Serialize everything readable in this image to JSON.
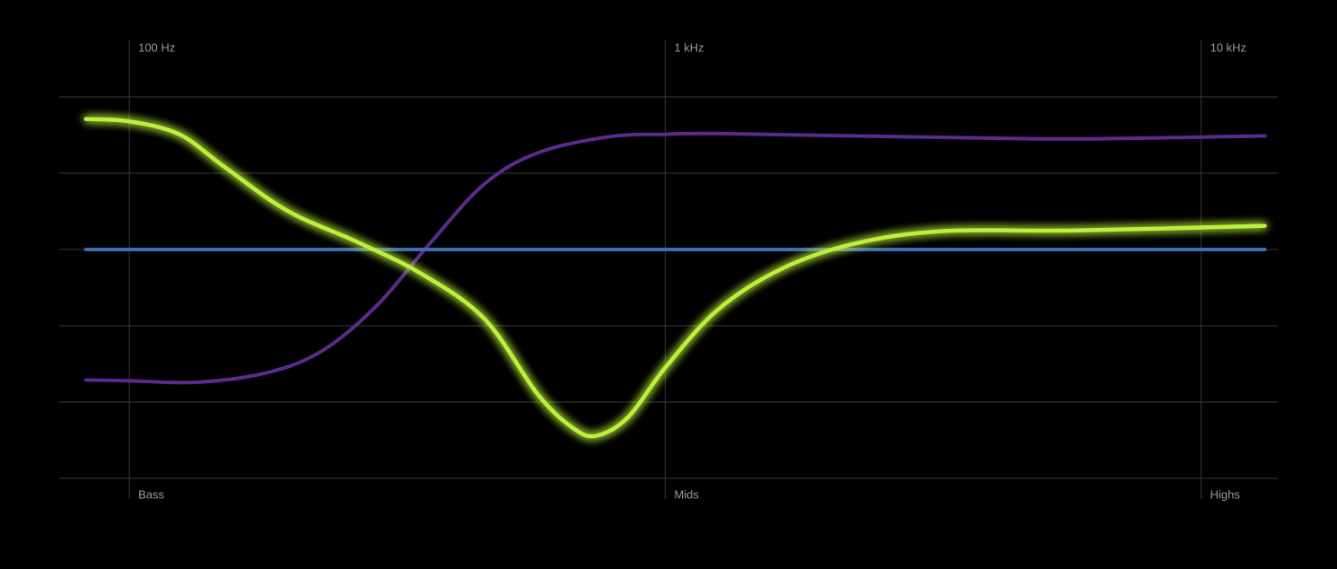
{
  "chart_data": {
    "type": "line",
    "xscale": "log",
    "xlim": [
      74,
      13900
    ],
    "ylim": [
      -3,
      2
    ],
    "xticks": [
      {
        "value": 100,
        "label": "100 Hz"
      },
      {
        "value": 1000,
        "label": "1 kHz"
      },
      {
        "value": 10000,
        "label": "10 kHz"
      }
    ],
    "xtick_bottom_labels": [
      "Bass",
      "Mids",
      "Highs"
    ],
    "ygrid": [
      -3,
      -2,
      -1,
      0,
      1,
      2
    ],
    "grid": true,
    "series": [
      {
        "color": "#5b2b8c",
        "glow": false,
        "x": [
          83,
          100,
          134,
          182,
          230,
          290,
          365,
          460,
          580,
          789,
          1000,
          1253,
          2708,
          5855,
          13150
        ],
        "values": [
          -1.71,
          -1.72,
          -1.74,
          -1.61,
          -1.32,
          -0.73,
          0.09,
          0.86,
          1.27,
          1.48,
          1.51,
          1.52,
          1.48,
          1.45,
          1.49
        ]
      },
      {
        "color": "#3d6fb0",
        "glow": false,
        "x": [
          83,
          13150
        ],
        "values": [
          0,
          0
        ]
      },
      {
        "color": "#bdf03c",
        "glow": true,
        "x": [
          83,
          100,
          124,
          150,
          197,
          268,
          351,
          460,
          580,
          676,
          745,
          852,
          1000,
          1253,
          1641,
          2234,
          3283,
          5855,
          13150
        ],
        "values": [
          1.71,
          1.68,
          1.51,
          1.09,
          0.51,
          0.09,
          -0.32,
          -0.91,
          -1.91,
          -2.35,
          -2.44,
          -2.2,
          -1.55,
          -0.79,
          -0.26,
          0.07,
          0.24,
          0.25,
          0.31
        ]
      }
    ]
  }
}
